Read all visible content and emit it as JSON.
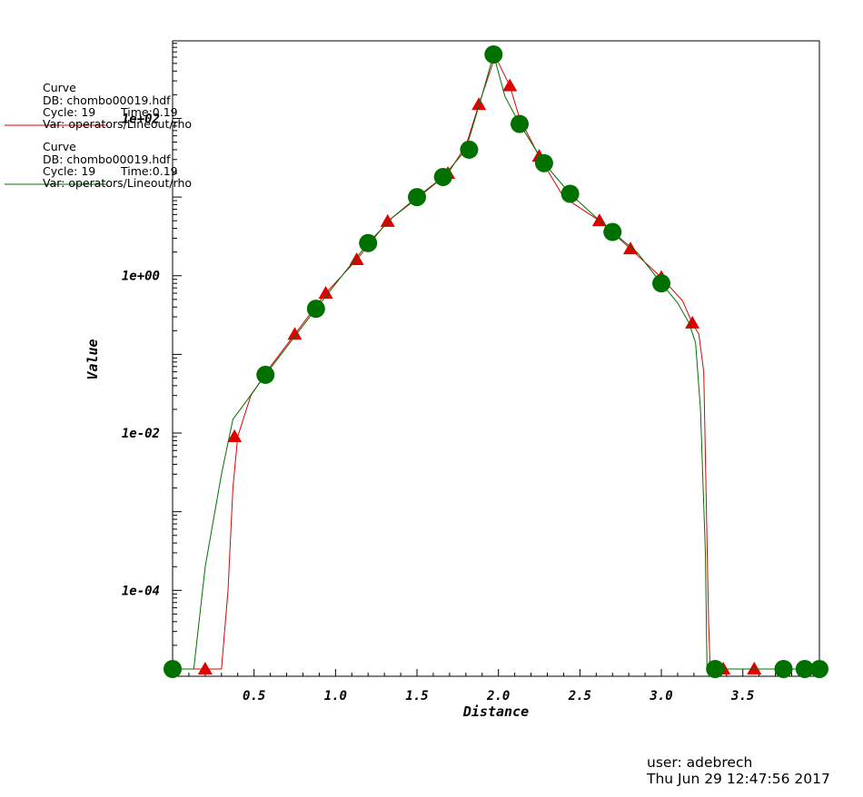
{
  "legend": [
    {
      "title": "Curve",
      "db": "DB: chombo00019.hdf",
      "cycle": "Cycle:  19",
      "time": "Time:0.19",
      "var": "Var: operators/Lineout/rho",
      "color": "#e00000"
    },
    {
      "title": "Curve",
      "db": "DB: chombo00019.hdf",
      "cycle": "Cycle:  19",
      "time": "Time:0.19",
      "var": "Var: operators/Lineout/rho",
      "color": "#007000"
    }
  ],
  "footer": {
    "user": "user: adebrech",
    "timestamp": "Thu Jun 29 12:47:56 2017"
  },
  "chart_data": {
    "type": "line",
    "xlabel": "Distance",
    "ylabel": "Value",
    "xlim": [
      0.0,
      3.97
    ],
    "ylim": [
      8e-06,
      900
    ],
    "yscale": "log",
    "x_ticks": [
      0.5,
      1.0,
      1.5,
      2.0,
      2.5,
      3.0,
      3.5
    ],
    "x_tick_labels": [
      "0.5",
      "1.0",
      "1.5",
      "2.0",
      "2.5",
      "3.0",
      "3.5"
    ],
    "y_ticks": [
      0.0001,
      0.01,
      1,
      100
    ],
    "y_tick_labels": [
      "1e-04",
      "1e-02",
      "1e+00",
      "1e+02"
    ],
    "series": [
      {
        "color": "#e00000",
        "marker": "triangle",
        "x": [
          0.0,
          0.3,
          0.34,
          0.37,
          0.4,
          0.48,
          0.6,
          0.75,
          0.94,
          1.13,
          1.32,
          1.5,
          1.69,
          1.8,
          1.88,
          1.98,
          2.07,
          2.13,
          2.25,
          2.4,
          2.62,
          2.81,
          3.0,
          3.13,
          3.19,
          3.23,
          3.26,
          3.29,
          3.3,
          3.33,
          3.97
        ],
        "y": [
          1e-05,
          1e-05,
          0.0001,
          0.002,
          0.009,
          0.03,
          0.07,
          0.18,
          0.6,
          1.6,
          4.9,
          9.6,
          20,
          45,
          150,
          620,
          260,
          100,
          33,
          10,
          5.0,
          2.2,
          0.95,
          0.48,
          0.25,
          0.18,
          0.06,
          4e-05,
          1e-05,
          1e-05,
          1e-05
        ],
        "marker_x": [
          0.2,
          0.38,
          0.75,
          0.94,
          1.13,
          1.32,
          1.69,
          1.88,
          2.07,
          2.25,
          2.62,
          2.81,
          3.0,
          3.19,
          3.38,
          3.57,
          3.97
        ],
        "marker_y": [
          1e-05,
          0.009,
          0.18,
          0.6,
          1.6,
          4.9,
          20,
          150,
          260,
          33,
          5.0,
          2.2,
          0.95,
          0.25,
          1e-05,
          1e-05,
          1e-05
        ]
      },
      {
        "color": "#007000",
        "marker": "circle",
        "x": [
          0.0,
          0.13,
          0.2,
          0.3,
          0.37,
          0.45,
          0.57,
          0.72,
          0.88,
          1.04,
          1.2,
          1.35,
          1.5,
          1.66,
          1.8,
          1.9,
          1.97,
          2.04,
          2.13,
          2.28,
          2.44,
          2.6,
          2.7,
          2.85,
          3.0,
          3.1,
          3.17,
          3.21,
          3.24,
          3.27,
          3.28,
          3.33,
          3.97
        ],
        "y": [
          1e-05,
          1e-05,
          0.0002,
          0.003,
          0.015,
          0.025,
          0.055,
          0.14,
          0.38,
          1.0,
          2.6,
          5.5,
          10,
          18,
          40,
          200,
          650,
          190,
          85,
          27,
          11,
          5.5,
          3.6,
          2.0,
          0.8,
          0.45,
          0.25,
          0.14,
          0.02,
          0.0003,
          1e-05,
          1e-05,
          1e-05
        ],
        "marker_x": [
          0.0,
          0.57,
          0.88,
          1.2,
          1.5,
          1.66,
          1.82,
          1.97,
          2.13,
          2.28,
          2.44,
          2.7,
          3.0,
          3.33,
          3.75,
          3.88,
          3.97
        ],
        "marker_y": [
          1e-05,
          0.055,
          0.38,
          2.6,
          10,
          18,
          40,
          650,
          85,
          27,
          11,
          3.6,
          0.8,
          1e-05,
          1e-05,
          1e-05,
          1e-05
        ]
      }
    ]
  }
}
